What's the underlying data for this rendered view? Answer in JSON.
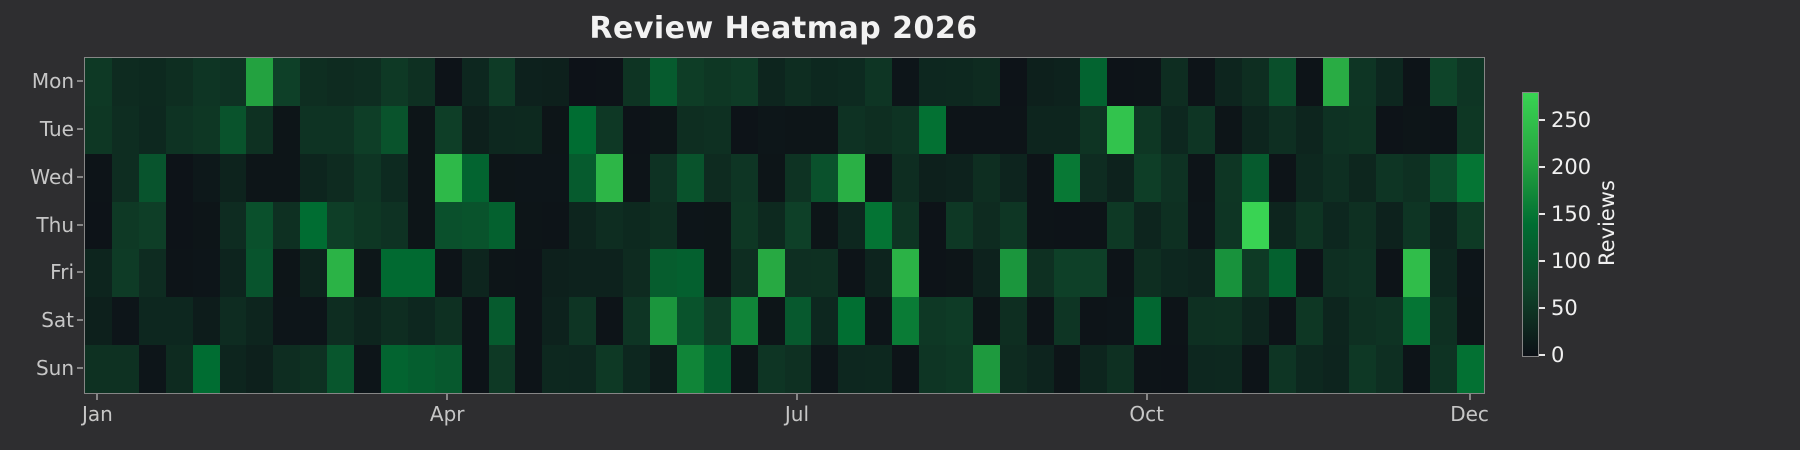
{
  "title": "Review Heatmap 2026",
  "colors": {
    "background": "#2e2e30",
    "spine": "#868686",
    "axis_tick_label": "#c6c6c6",
    "title_text": "#f2f2f2",
    "colorbar_text": "#f0f0f0",
    "colormap_stops": [
      "#0d1117",
      "#0e4429",
      "#006d32",
      "#26a641",
      "#39d353"
    ]
  },
  "chart_data": {
    "type": "heatmap",
    "title": "Review Heatmap 2026",
    "x_axis": "weeks of the year (52 columns)",
    "n_columns": 52,
    "row_labels": [
      "Mon",
      "Tue",
      "Wed",
      "Thu",
      "Fri",
      "Sat",
      "Sun"
    ],
    "x_ticks": [
      {
        "label": "Jan",
        "week_index": 0
      },
      {
        "label": "Apr",
        "week_index": 13
      },
      {
        "label": "Jul",
        "week_index": 26
      },
      {
        "label": "Oct",
        "week_index": 39
      },
      {
        "label": "Dec",
        "week_index": 51
      }
    ],
    "colorbar": {
      "label": "Reviews",
      "tick_values": [
        0,
        50,
        100,
        150,
        200,
        250
      ],
      "vmin": 0,
      "vmax": 280
    },
    "series": [
      {
        "name": "Mon",
        "values": [
          55,
          35,
          33,
          40,
          50,
          45,
          205,
          65,
          40,
          36,
          38,
          55,
          42,
          3,
          30,
          58,
          22,
          20,
          2,
          3,
          48,
          110,
          60,
          52,
          58,
          28,
          38,
          31,
          34,
          50,
          6,
          30,
          31,
          35,
          3,
          20,
          23,
          125,
          3,
          4,
          38,
          4,
          27,
          40,
          88,
          4,
          220,
          50,
          30,
          4,
          70,
          50
        ]
      },
      {
        "name": "Tue",
        "values": [
          52,
          38,
          32,
          46,
          52,
          95,
          44,
          5,
          46,
          46,
          62,
          95,
          5,
          62,
          21,
          32,
          33,
          5,
          140,
          53,
          3,
          5,
          40,
          43,
          3,
          7,
          5,
          5,
          45,
          40,
          47,
          145,
          4,
          4,
          4,
          27,
          28,
          48,
          255,
          52,
          30,
          50,
          5,
          27,
          41,
          27,
          45,
          48,
          3,
          5,
          4,
          52
        ]
      },
      {
        "name": "Wed",
        "values": [
          4,
          38,
          98,
          3,
          10,
          25,
          5,
          5,
          28,
          36,
          50,
          34,
          5,
          240,
          125,
          5,
          6,
          6,
          110,
          235,
          4,
          45,
          95,
          35,
          50,
          5,
          47,
          92,
          225,
          3,
          38,
          21,
          24,
          40,
          26,
          4,
          155,
          37,
          23,
          62,
          45,
          4,
          51,
          110,
          4,
          31,
          41,
          29,
          50,
          42,
          85,
          150
        ]
      },
      {
        "name": "Thu",
        "values": [
          3,
          55,
          62,
          3,
          5,
          37,
          90,
          42,
          140,
          62,
          52,
          45,
          5,
          90,
          95,
          120,
          5,
          4,
          28,
          38,
          33,
          40,
          6,
          5,
          52,
          33,
          65,
          5,
          30,
          148,
          48,
          3,
          53,
          36,
          51,
          4,
          3,
          4,
          55,
          27,
          42,
          6,
          50,
          280,
          27,
          48,
          30,
          43,
          23,
          50,
          26,
          56
        ]
      },
      {
        "name": "Fri",
        "values": [
          27,
          58,
          37,
          4,
          6,
          26,
          98,
          5,
          25,
          230,
          8,
          135,
          135,
          4,
          28,
          5,
          4,
          20,
          23,
          24,
          36,
          112,
          118,
          5,
          38,
          215,
          41,
          43,
          4,
          26,
          228,
          3,
          5,
          24,
          190,
          42,
          65,
          65,
          4,
          40,
          30,
          26,
          185,
          56,
          120,
          4,
          41,
          45,
          4,
          245,
          32,
          6
        ]
      },
      {
        "name": "Sat",
        "values": [
          20,
          6,
          30,
          30,
          15,
          37,
          28,
          6,
          6,
          38,
          27,
          38,
          30,
          42,
          3,
          110,
          4,
          24,
          50,
          4,
          50,
          190,
          95,
          58,
          170,
          5,
          105,
          30,
          142,
          6,
          158,
          54,
          58,
          5,
          40,
          4,
          50,
          4,
          6,
          130,
          4,
          42,
          44,
          27,
          4,
          52,
          28,
          43,
          46,
          150,
          42,
          5
        ]
      },
      {
        "name": "Sun",
        "values": [
          44,
          44,
          6,
          36,
          140,
          27,
          20,
          38,
          44,
          100,
          6,
          125,
          115,
          105,
          3,
          55,
          4,
          32,
          30,
          55,
          30,
          15,
          170,
          118,
          5,
          50,
          42,
          6,
          30,
          32,
          4,
          50,
          53,
          195,
          36,
          26,
          5,
          27,
          42,
          4,
          3,
          30,
          31,
          4,
          50,
          31,
          26,
          53,
          41,
          4,
          47,
          145
        ]
      }
    ]
  }
}
